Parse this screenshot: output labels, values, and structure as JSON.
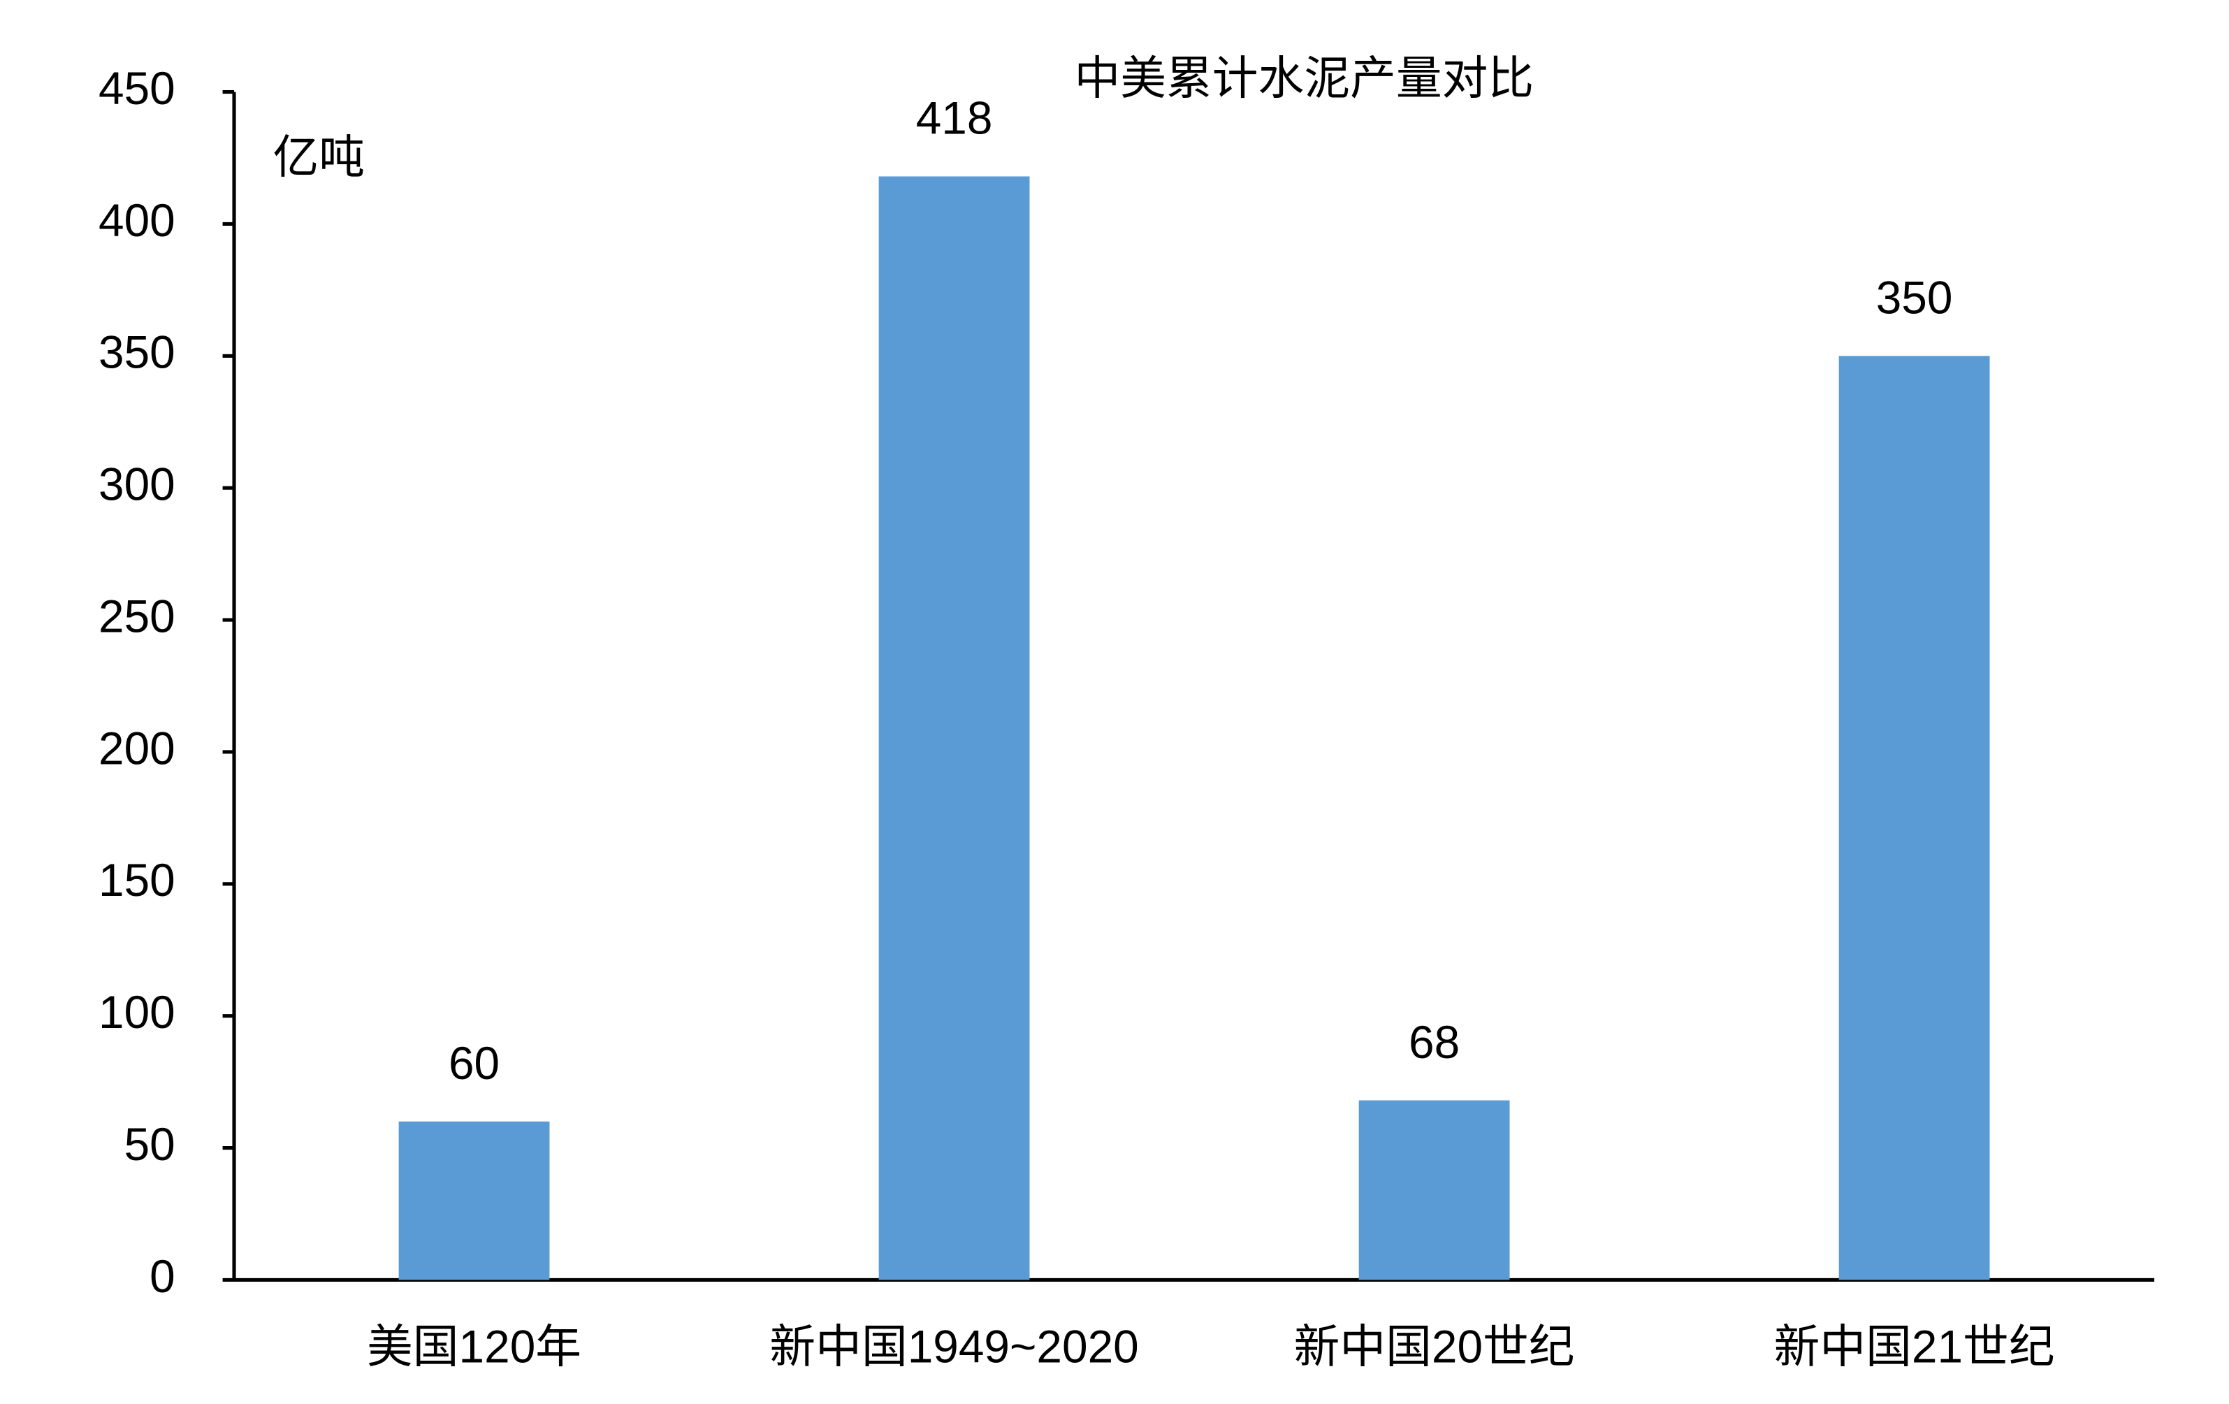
{
  "chart_data": {
    "type": "bar",
    "title": "中美累计水泥产量对比",
    "y_label": "亿吨",
    "categories": [
      "美国120年",
      "新中国1949~2020",
      "新中国20世纪",
      "新中国21世纪"
    ],
    "values": [
      60,
      418,
      68,
      350
    ],
    "color": "#5b9bd5",
    "ylim": [
      0,
      450
    ],
    "yticks": [
      0,
      50,
      100,
      150,
      200,
      250,
      300,
      350,
      400,
      450
    ],
    "grid": false
  }
}
